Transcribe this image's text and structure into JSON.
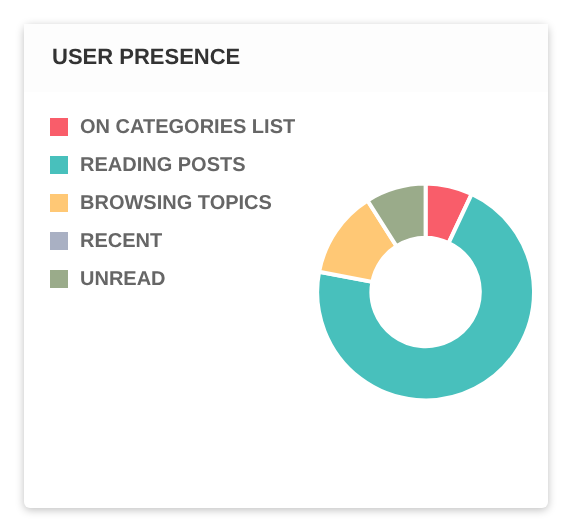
{
  "chart_data": {
    "type": "donut",
    "title": "USER PRESENCE",
    "categories": [
      "ON CATEGORIES LIST",
      "READING POSTS",
      "BROWSING TOPICS",
      "RECENT",
      "UNREAD"
    ],
    "values": [
      7,
      71,
      13,
      0,
      9
    ],
    "colors": [
      "#f95d6a",
      "#48c0bc",
      "#ffc875",
      "#a9b0c3",
      "#9aab8a"
    ],
    "legend": "left"
  }
}
